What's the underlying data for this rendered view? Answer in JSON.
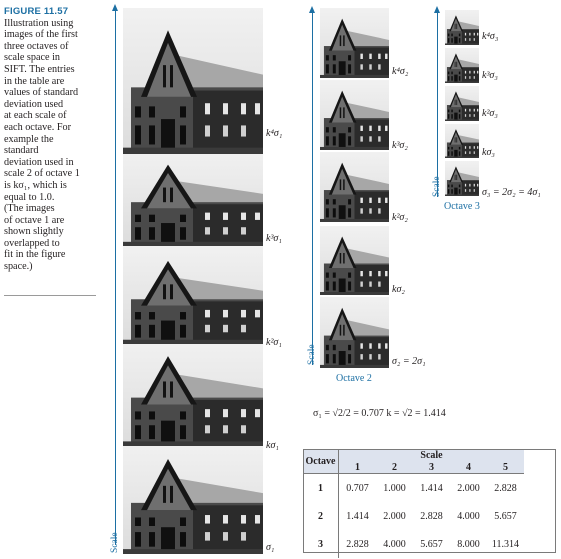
{
  "caption": {
    "figure_label": "FIGURE 11.57",
    "lines": [
      "Illustration using",
      "images of the first",
      "three octaves of",
      "scale space in",
      "SIFT. The entries",
      "in the table are",
      "values of standard",
      "deviation used",
      "at each scale of",
      "each octave. For",
      "example the",
      "standard",
      "deviation used in",
      "scale 2 of octave 1",
      "is kσ₁, which is",
      "equal to 1.0.",
      "(The images",
      "of octave 1 are",
      "shown slightly",
      "overlapped to",
      "fit in the figure",
      "space.)"
    ]
  },
  "axis_label": "Scale",
  "octaves": [
    {
      "name": "",
      "scale_labels": [
        "σ₁",
        "kσ₁",
        "k²σ₁",
        "k³σ₁",
        "k⁴σ₁"
      ]
    },
    {
      "name": "Octave 2",
      "scale_labels": [
        "σ₂ = 2σ₁",
        "kσ₂",
        "k²σ₂",
        "k³σ₂",
        "k⁴σ₂"
      ]
    },
    {
      "name": "Octave 3",
      "scale_labels": [
        "σ₃ = 2σ₂ = 4σ₁",
        "kσ₃",
        "k²σ₃",
        "k³σ₃",
        "k⁴σ₃"
      ]
    }
  ],
  "formula": "σ₁ = √2/2 = 0.707     k = √2 = 1.414",
  "table": {
    "row_header": "Octave",
    "column_header": "Scale",
    "columns": [
      "1",
      "2",
      "3",
      "4",
      "5"
    ],
    "rows": [
      {
        "octave": "1",
        "values": [
          "0.707",
          "1.000",
          "1.414",
          "2.000",
          "2.828"
        ]
      },
      {
        "octave": "2",
        "values": [
          "1.414",
          "2.000",
          "2.828",
          "4.000",
          "5.657"
        ]
      },
      {
        "octave": "3",
        "values": [
          "2.828",
          "4.000",
          "5.657",
          "8.000",
          "11.314"
        ]
      }
    ]
  }
}
